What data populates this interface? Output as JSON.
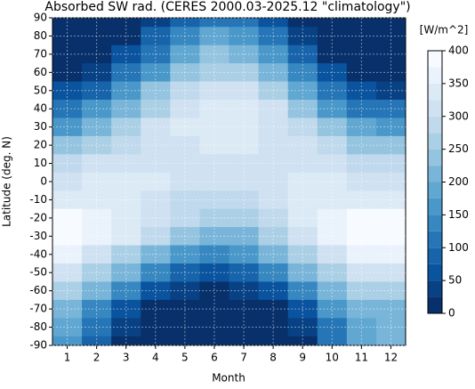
{
  "chart_data": {
    "type": "contour",
    "title": "Absorbed SW rad. (CERES 2000.03-2025.12 \"climatology\")",
    "x_label": "Month",
    "y_label": "Latitude (deg. N)",
    "colorbar_label": "[W/m^2]",
    "x": [
      1,
      2,
      3,
      4,
      5,
      6,
      7,
      8,
      9,
      10,
      11,
      12
    ],
    "y": [
      90,
      80,
      70,
      60,
      50,
      40,
      30,
      20,
      10,
      0,
      -10,
      -20,
      -30,
      -40,
      -50,
      -60,
      -70,
      -80,
      -90
    ],
    "z": [
      [
        0,
        0,
        5,
        40,
        90,
        120,
        110,
        60,
        15,
        0,
        0,
        0
      ],
      [
        0,
        2,
        20,
        80,
        140,
        180,
        170,
        110,
        40,
        5,
        0,
        0
      ],
      [
        0,
        10,
        50,
        120,
        190,
        230,
        220,
        160,
        80,
        20,
        2,
        0
      ],
      [
        10,
        40,
        100,
        170,
        230,
        270,
        260,
        210,
        130,
        60,
        20,
        5
      ],
      [
        50,
        90,
        160,
        230,
        280,
        310,
        300,
        260,
        190,
        110,
        60,
        40
      ],
      [
        110,
        150,
        210,
        270,
        310,
        330,
        325,
        300,
        240,
        170,
        120,
        100
      ],
      [
        170,
        210,
        260,
        300,
        330,
        345,
        340,
        320,
        280,
        230,
        180,
        160
      ],
      [
        230,
        260,
        290,
        310,
        320,
        325,
        325,
        320,
        305,
        280,
        245,
        225
      ],
      [
        280,
        300,
        315,
        320,
        315,
        305,
        300,
        310,
        315,
        310,
        290,
        275
      ],
      [
        320,
        330,
        335,
        330,
        315,
        300,
        300,
        315,
        330,
        330,
        320,
        315
      ],
      [
        345,
        345,
        340,
        320,
        295,
        280,
        285,
        305,
        330,
        345,
        345,
        345
      ],
      [
        375,
        365,
        345,
        310,
        275,
        255,
        265,
        295,
        330,
        360,
        375,
        380
      ],
      [
        380,
        360,
        325,
        280,
        235,
        210,
        220,
        260,
        310,
        355,
        380,
        385
      ],
      [
        350,
        320,
        270,
        210,
        160,
        135,
        150,
        200,
        260,
        320,
        355,
        360
      ],
      [
        300,
        260,
        200,
        140,
        90,
        70,
        85,
        130,
        200,
        270,
        310,
        315
      ],
      [
        250,
        200,
        130,
        70,
        30,
        15,
        25,
        60,
        130,
        210,
        260,
        270
      ],
      [
        200,
        140,
        70,
        20,
        2,
        0,
        2,
        15,
        60,
        150,
        210,
        220
      ],
      [
        180,
        110,
        35,
        5,
        0,
        0,
        0,
        2,
        30,
        120,
        190,
        210
      ],
      [
        170,
        90,
        20,
        0,
        0,
        0,
        0,
        0,
        15,
        100,
        180,
        200
      ]
    ],
    "xlim": [
      0.5,
      12.5
    ],
    "ylim": [
      -90,
      90
    ],
    "xticks": [
      1,
      2,
      3,
      4,
      5,
      6,
      7,
      8,
      9,
      10,
      11,
      12
    ],
    "yticks": [
      -90,
      -80,
      -70,
      -60,
      -50,
      -40,
      -30,
      -20,
      -10,
      0,
      10,
      20,
      30,
      40,
      50,
      60,
      70,
      80,
      90
    ],
    "levels": [
      0,
      25,
      50,
      75,
      100,
      125,
      150,
      175,
      200,
      225,
      250,
      275,
      300,
      325,
      350,
      375,
      400
    ],
    "colorbar_ticks": [
      0,
      50,
      100,
      150,
      200,
      250,
      300,
      350,
      400
    ],
    "colors": [
      "#08306b",
      "#08519c",
      "#2171b5",
      "#4292c6",
      "#6baed6",
      "#9ecae1",
      "#c6dbef",
      "#deebf7",
      "#f7fbff"
    ],
    "grid": true
  }
}
